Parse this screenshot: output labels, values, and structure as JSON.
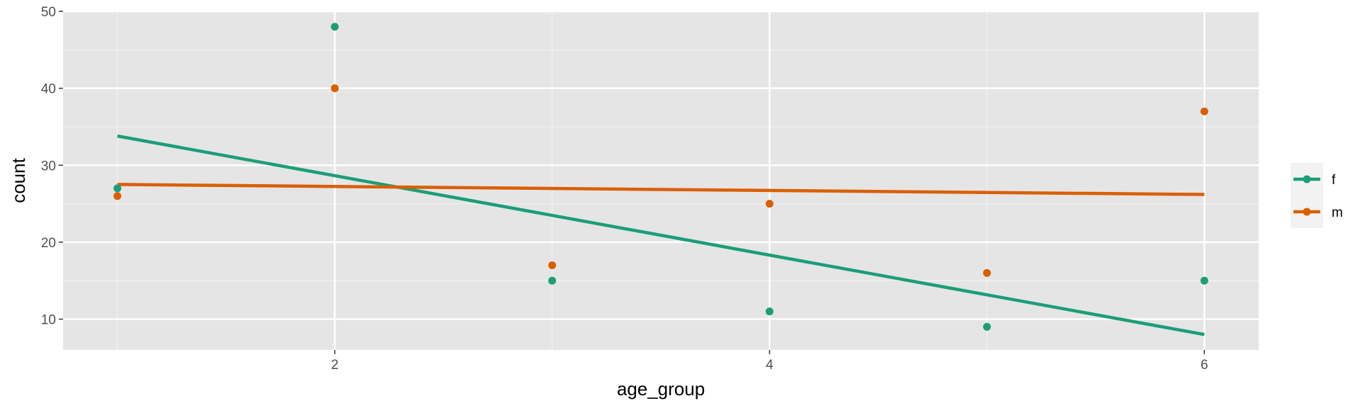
{
  "chart_data": {
    "type": "scatter",
    "xlabel": "age_group",
    "ylabel": "count",
    "xlim": [
      0.75,
      6.25
    ],
    "ylim": [
      6,
      50
    ],
    "x_ticks": [
      2,
      4,
      6
    ],
    "y_ticks": [
      10,
      20,
      30,
      40,
      50
    ],
    "grid": true,
    "legend_position": "right",
    "series": [
      {
        "name": "f",
        "color": "#1b9e77",
        "x": [
          1,
          2,
          3,
          4,
          5,
          6
        ],
        "y": [
          27,
          48,
          15,
          11,
          9,
          15
        ],
        "trend": [
          [
            1,
            33.8
          ],
          [
            6,
            8.0
          ]
        ]
      },
      {
        "name": "m",
        "color": "#d95f02",
        "x": [
          1,
          2,
          3,
          4,
          5,
          6
        ],
        "y": [
          26,
          40,
          17,
          25,
          16,
          37
        ],
        "trend": [
          [
            1,
            27.5
          ],
          [
            6,
            26.2
          ]
        ]
      }
    ]
  }
}
